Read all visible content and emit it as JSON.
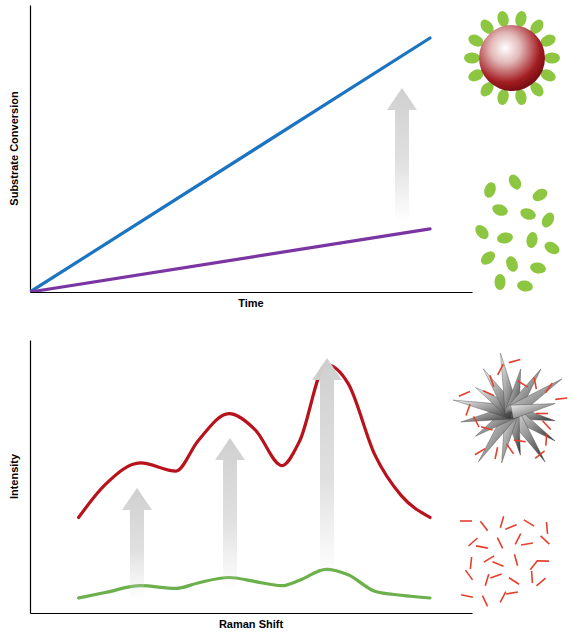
{
  "chart_data": [
    {
      "type": "line",
      "x_label": "Time",
      "y_label": "Substrate Conversion",
      "xlim": [
        0,
        10
      ],
      "ylim": [
        0,
        10
      ],
      "tick_labels": false,
      "x": [
        0,
        9.05
      ],
      "series": [
        {
          "color": "#1b74c2",
          "values": [
            0,
            8.85
          ]
        },
        {
          "color": "#7a35a3",
          "values": [
            0,
            2.2
          ]
        }
      ]
    },
    {
      "type": "line",
      "x_label": "Raman Shift",
      "y_label": "Intensity",
      "xlim": [
        0,
        10
      ],
      "ylim": [
        0,
        10
      ],
      "tick_labels": false,
      "x": [
        1.1,
        1.7,
        2.5,
        3.3,
        3.8,
        4.5,
        5.1,
        5.7,
        6.1,
        6.7,
        7.2,
        7.8,
        8.4,
        9.05
      ],
      "series": [
        {
          "color": "#b8121c",
          "values": [
            3.5,
            4.7,
            5.5,
            5.2,
            6.3,
            7.3,
            6.7,
            5.4,
            6.3,
            9.1,
            8.4,
            5.8,
            4.3,
            3.5
          ]
        },
        {
          "color": "#6bb04b",
          "values": [
            0.55,
            0.75,
            1.0,
            0.9,
            1.1,
            1.3,
            1.15,
            1.0,
            1.2,
            1.6,
            1.4,
            0.8,
            0.65,
            0.55
          ]
        }
      ]
    }
  ]
}
